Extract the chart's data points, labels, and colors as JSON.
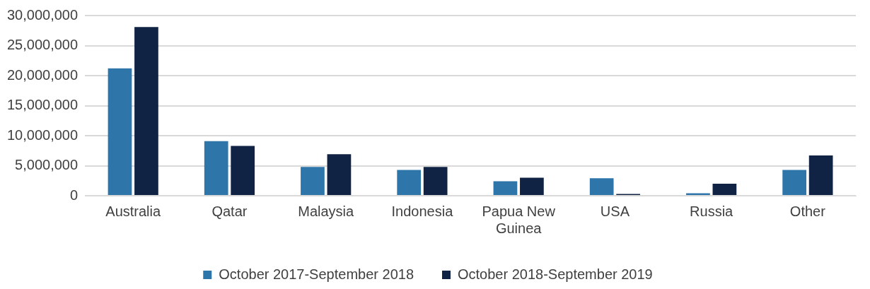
{
  "chart_data": {
    "type": "bar",
    "categories": [
      "Australia",
      "Qatar",
      "Malaysia",
      "Indonesia",
      "Papua New Guinea",
      "USA",
      "Russia",
      "Other"
    ],
    "series": [
      {
        "name": "October 2017-September 2018",
        "color": "#2e75aa",
        "values": [
          21200000,
          9100000,
          4800000,
          4300000,
          2400000,
          2900000,
          400000,
          4300000
        ]
      },
      {
        "name": "October 2018-September 2019",
        "color": "#112345",
        "values": [
          28100000,
          8300000,
          6900000,
          4800000,
          3000000,
          300000,
          2000000,
          6700000
        ]
      }
    ],
    "ylim": [
      0,
      30000000
    ],
    "yticks": [
      {
        "value": 0,
        "label": "0"
      },
      {
        "value": 5000000,
        "label": "5,000,000"
      },
      {
        "value": 10000000,
        "label": "10,000,000"
      },
      {
        "value": 15000000,
        "label": "15,000,000"
      },
      {
        "value": 20000000,
        "label": "20,000,000"
      },
      {
        "value": 25000000,
        "label": "25,000,000"
      },
      {
        "value": 30000000,
        "label": "30,000,000"
      }
    ],
    "grid": "y",
    "legend": "bottom"
  }
}
